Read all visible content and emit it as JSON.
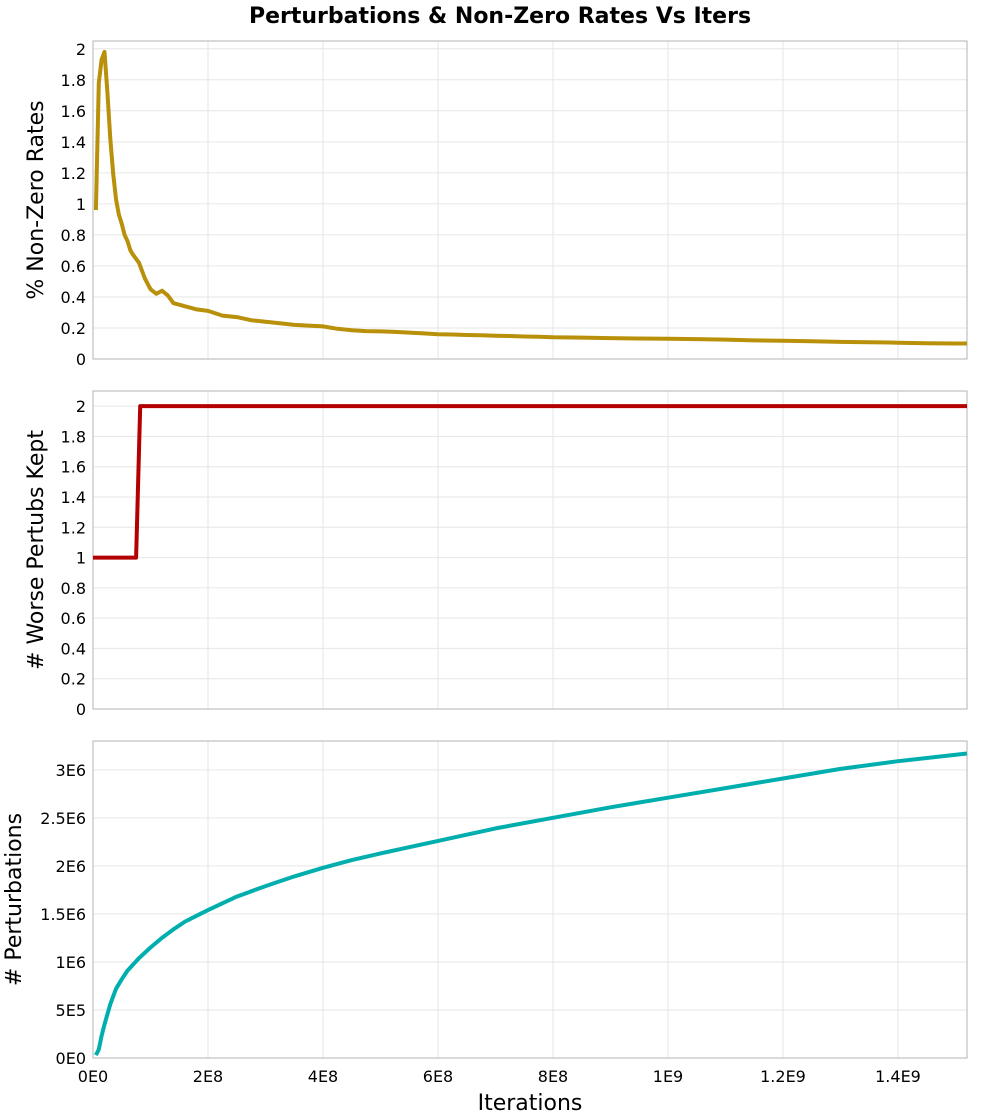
{
  "title": "Perturbations & Non-Zero Rates Vs Iters",
  "xlabel": "Iterations",
  "colors": {
    "rates": "#B8900A",
    "worse": "#B30000",
    "perturbations": "#00AEAE"
  },
  "chart_data": [
    {
      "type": "line",
      "ylabel": "% Non-Zero Rates",
      "xlim": [
        0,
        1520000000
      ],
      "ylim": [
        0,
        2.05
      ],
      "yticks": [
        0,
        0.2,
        0.4,
        0.6,
        0.8,
        1,
        1.2,
        1.4,
        1.6,
        1.8,
        2
      ],
      "ytick_labels": [
        "0",
        "0.2",
        "0.4",
        "0.6",
        "0.8",
        "1",
        "1.2",
        "1.4",
        "1.6",
        "1.8",
        "2"
      ],
      "grid": true,
      "series": [
        {
          "x": [
            5000000,
            10000000,
            15000000,
            20000000,
            25000000,
            30000000,
            35000000,
            40000000,
            45000000,
            50000000,
            55000000,
            60000000,
            65000000,
            70000000,
            80000000,
            90000000,
            100000000,
            110000000,
            120000000,
            130000000,
            140000000,
            150000000,
            160000000,
            170000000,
            180000000,
            200000000,
            225000000,
            250000000,
            275000000,
            300000000,
            325000000,
            350000000,
            375000000,
            400000000,
            425000000,
            450000000,
            475000000,
            500000000,
            525000000,
            550000000,
            575000000,
            600000000,
            625000000,
            650000000,
            675000000,
            700000000,
            725000000,
            750000000,
            775000000,
            800000000,
            850000000,
            900000000,
            950000000,
            1000000000,
            1050000000,
            1100000000,
            1150000000,
            1200000000,
            1250000000,
            1300000000,
            1350000000,
            1400000000,
            1450000000,
            1500000000,
            1520000000
          ],
          "y": [
            0.96,
            1.78,
            1.93,
            1.98,
            1.72,
            1.42,
            1.2,
            1.03,
            0.93,
            0.87,
            0.8,
            0.76,
            0.7,
            0.67,
            0.62,
            0.52,
            0.45,
            0.42,
            0.44,
            0.41,
            0.36,
            0.35,
            0.34,
            0.33,
            0.32,
            0.31,
            0.28,
            0.27,
            0.25,
            0.24,
            0.23,
            0.22,
            0.215,
            0.21,
            0.195,
            0.185,
            0.18,
            0.178,
            0.175,
            0.17,
            0.165,
            0.16,
            0.158,
            0.155,
            0.153,
            0.15,
            0.148,
            0.145,
            0.143,
            0.14,
            0.138,
            0.135,
            0.132,
            0.13,
            0.128,
            0.125,
            0.12,
            0.118,
            0.115,
            0.11,
            0.108,
            0.105,
            0.102,
            0.1,
            0.1
          ]
        }
      ]
    },
    {
      "type": "line",
      "ylabel": "# Worse Pertubs Kept",
      "xlim": [
        0,
        1520000000
      ],
      "ylim": [
        0,
        2.1
      ],
      "yticks": [
        0,
        0.2,
        0.4,
        0.6,
        0.8,
        1,
        1.2,
        1.4,
        1.6,
        1.8,
        2
      ],
      "ytick_labels": [
        "0",
        "0.2",
        "0.4",
        "0.6",
        "0.8",
        "1",
        "1.2",
        "1.4",
        "1.6",
        "1.8",
        "2"
      ],
      "grid": true,
      "series": [
        {
          "x": [
            0,
            75000000,
            82000000,
            1520000000
          ],
          "y": [
            1,
            1,
            2,
            2
          ]
        }
      ]
    },
    {
      "type": "line",
      "ylabel": "# Perturbations",
      "xlim": [
        0,
        1520000000
      ],
      "ylim": [
        0,
        3300000
      ],
      "yticks": [
        0,
        500000,
        1000000,
        1500000,
        2000000,
        2500000,
        3000000
      ],
      "ytick_labels": [
        "0E0",
        "5E5",
        "1E6",
        "1.5E6",
        "2E6",
        "2.5E6",
        "3E6"
      ],
      "grid": true,
      "series": [
        {
          "x": [
            5000000,
            10000000,
            15000000,
            20000000,
            30000000,
            40000000,
            50000000,
            60000000,
            80000000,
            100000000,
            120000000,
            140000000,
            160000000,
            180000000,
            200000000,
            250000000,
            300000000,
            350000000,
            400000000,
            450000000,
            500000000,
            600000000,
            700000000,
            800000000,
            900000000,
            1000000000,
            1100000000,
            1200000000,
            1300000000,
            1400000000,
            1520000000
          ],
          "y": [
            30000,
            90000,
            230000,
            350000,
            560000,
            720000,
            820000,
            910000,
            1040000,
            1150000,
            1250000,
            1340000,
            1420000,
            1480000,
            1540000,
            1680000,
            1790000,
            1890000,
            1980000,
            2060000,
            2130000,
            2260000,
            2390000,
            2500000,
            2610000,
            2710000,
            2810000,
            2910000,
            3010000,
            3090000,
            3170000
          ]
        }
      ]
    }
  ],
  "xticks": [
    0,
    200000000,
    400000000,
    600000000,
    800000000,
    1000000000,
    1200000000,
    1400000000
  ],
  "xtick_labels": [
    "0E0",
    "2E8",
    "4E8",
    "6E8",
    "8E8",
    "1E9",
    "1.2E9",
    "1.4E9"
  ]
}
